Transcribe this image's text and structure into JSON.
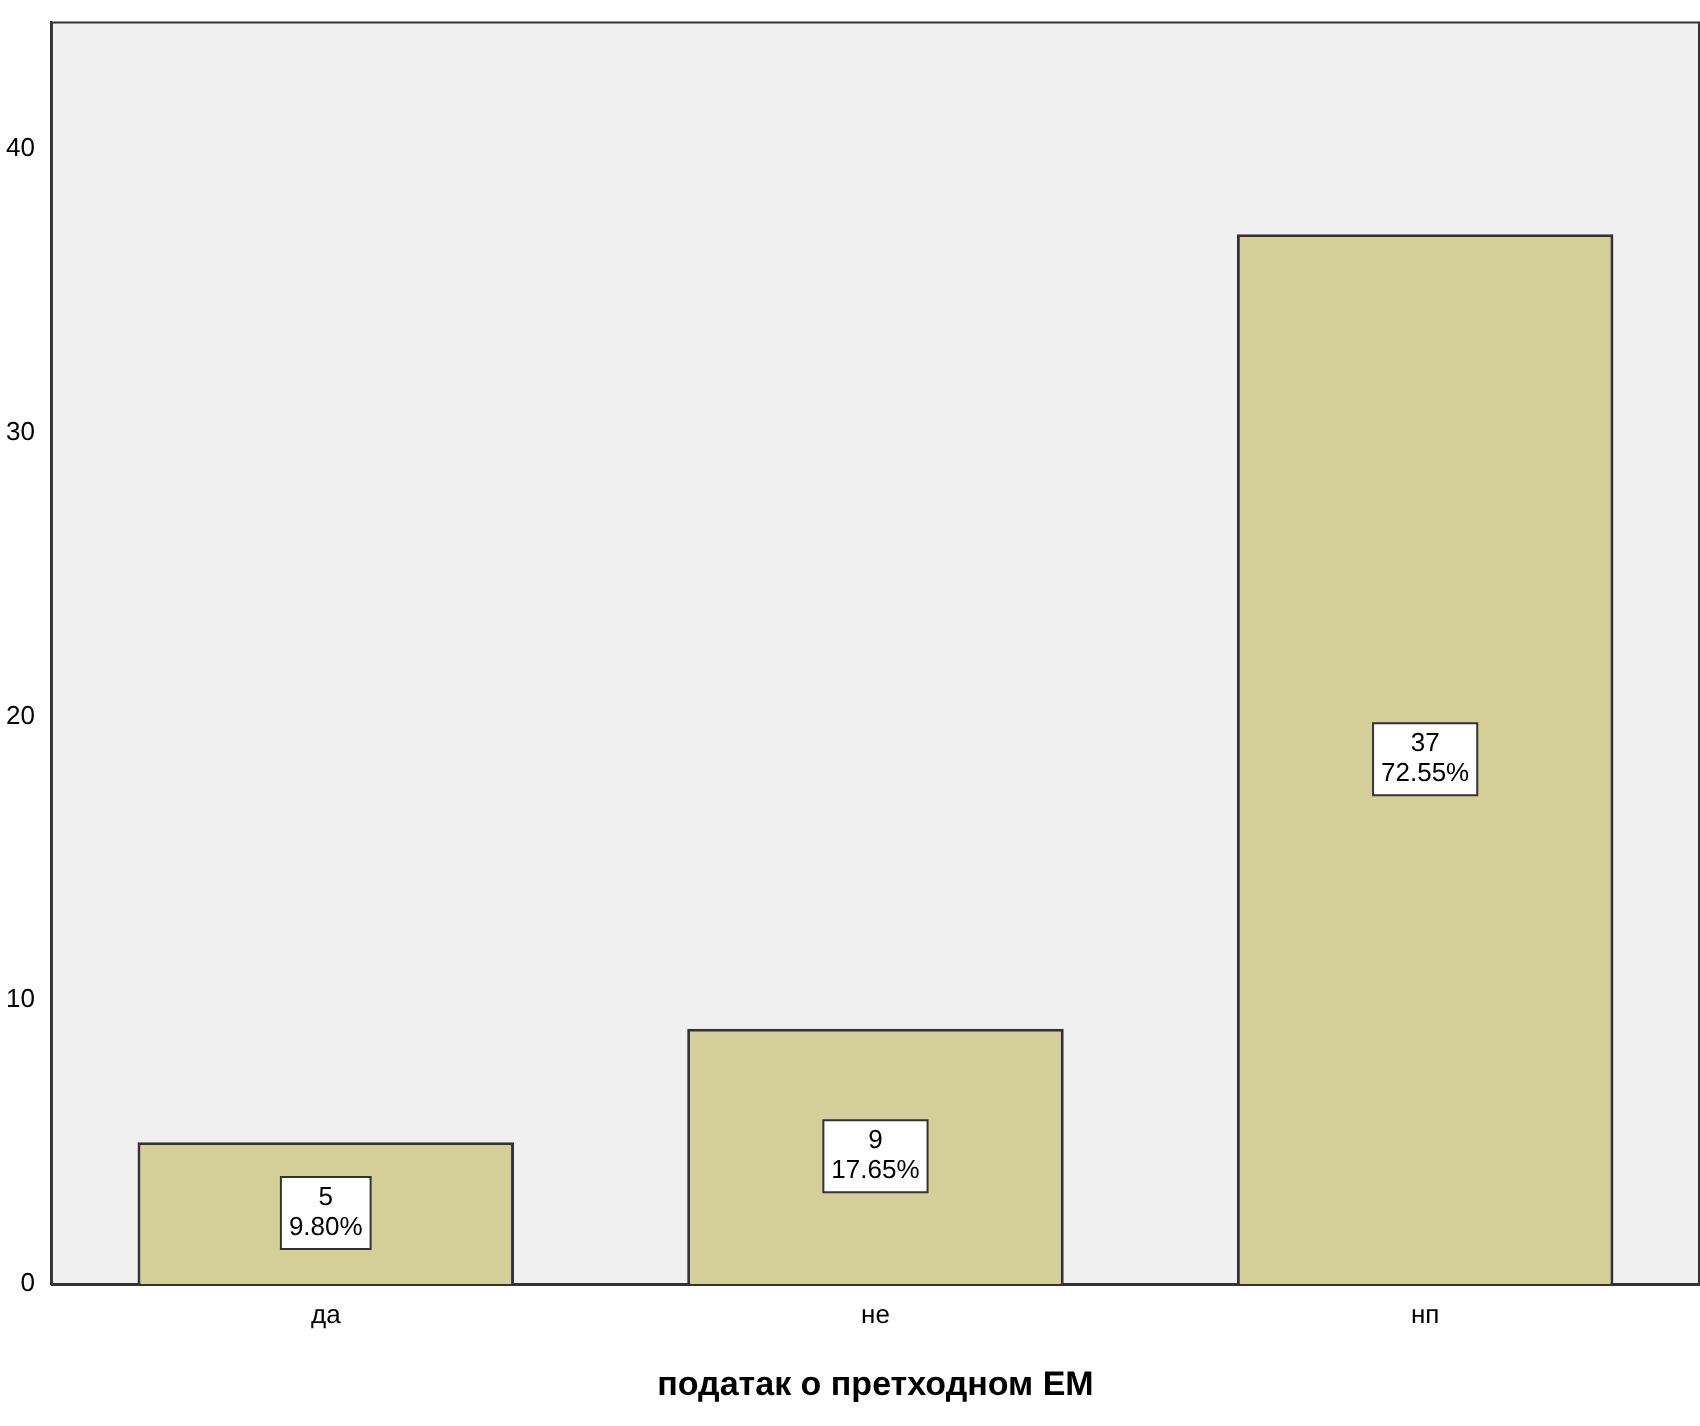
{
  "chart_data": {
    "type": "bar",
    "xlabel": "податак о претходном ЕМ",
    "categories": [
      "да",
      "не",
      "нп"
    ],
    "values": [
      5,
      9,
      37
    ],
    "value_labels": [
      "5\n9.80%",
      "9\n17.65%",
      "37\n72.55%"
    ],
    "color": "#d4cf99",
    "ylim": [
      0,
      44.5
    ],
    "yticks": [
      0,
      10,
      20,
      30,
      40
    ],
    "grid": false,
    "legend": false
  }
}
